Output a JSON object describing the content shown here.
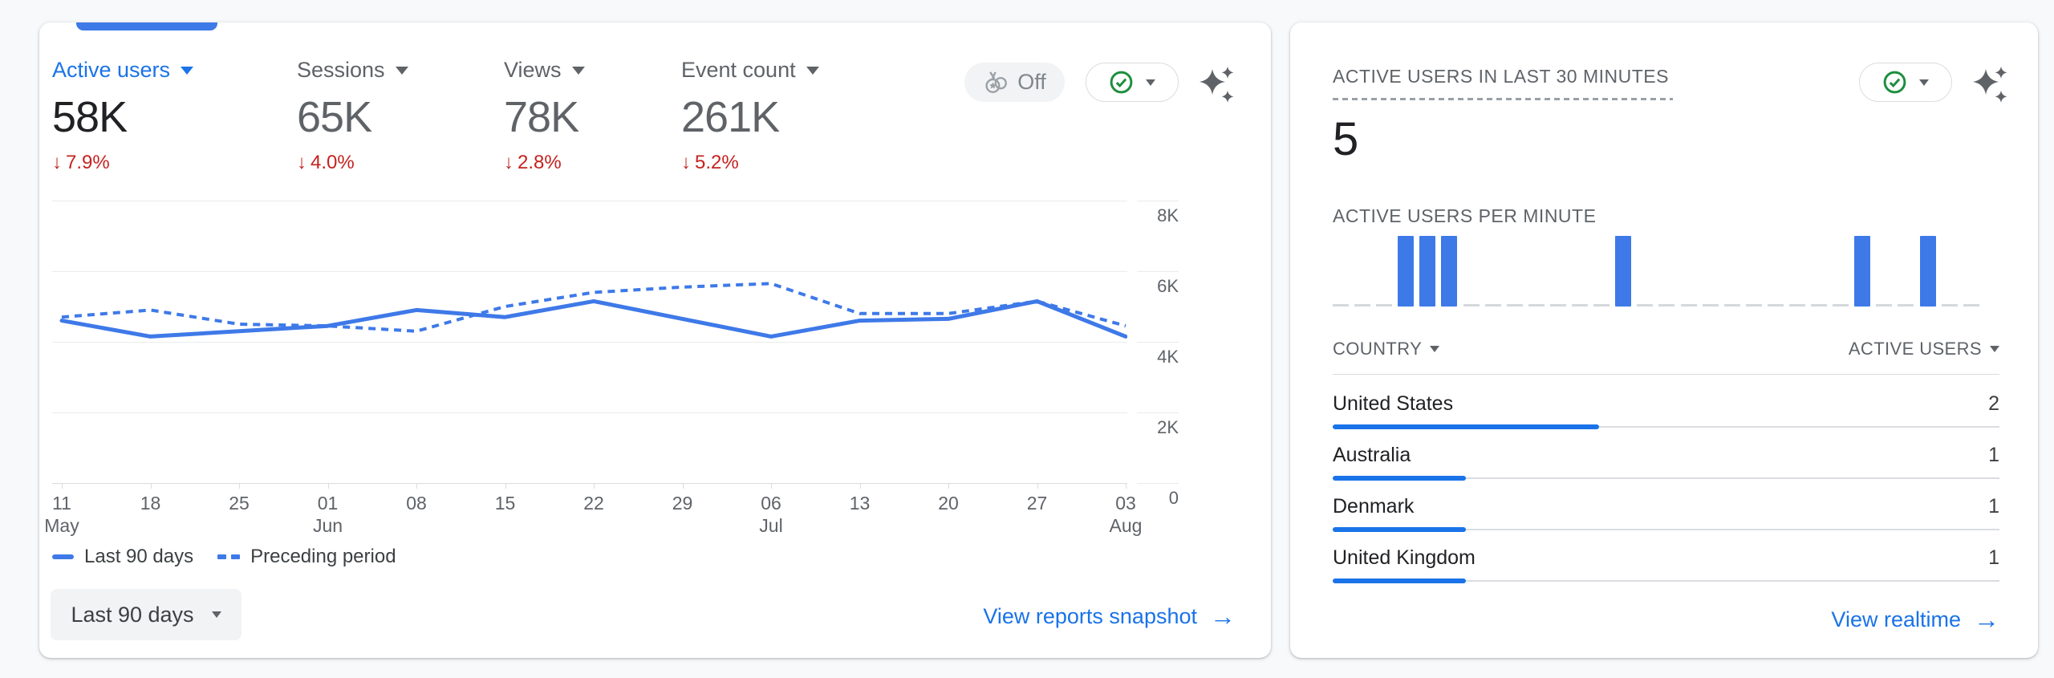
{
  "page": {
    "background": "#f8f9fa"
  },
  "colors": {
    "accent_blue": "#1a73e8",
    "chart_blue": "#3e79e8",
    "negative_red": "#c5221f",
    "status_green": "#1e8e3e"
  },
  "overview_card": {
    "metrics": [
      {
        "label": "Active users",
        "value": "58K",
        "arrow": "↓",
        "change": "7.9%"
      },
      {
        "label": "Sessions",
        "value": "65K",
        "arrow": "↓",
        "change": "4.0%"
      },
      {
        "label": "Views",
        "value": "78K",
        "arrow": "↓",
        "change": "2.8%"
      },
      {
        "label": "Event count",
        "value": "261K",
        "arrow": "↓",
        "change": "5.2%"
      }
    ],
    "anomaly_toggle_label": "Off",
    "chart_data": {
      "type": "line",
      "y_ticks": [
        "8K",
        "6K",
        "4K",
        "2K",
        "0"
      ],
      "y_max": 8000,
      "x_ticks": [
        {
          "day": "11",
          "month": "May"
        },
        {
          "day": "18"
        },
        {
          "day": "25"
        },
        {
          "day": "01",
          "month": "Jun"
        },
        {
          "day": "08"
        },
        {
          "day": "15"
        },
        {
          "day": "22"
        },
        {
          "day": "29"
        },
        {
          "day": "06",
          "month": "Jul"
        },
        {
          "day": "13"
        },
        {
          "day": "20"
        },
        {
          "day": "27"
        },
        {
          "day": "03",
          "month": "Aug"
        }
      ],
      "series": [
        {
          "name": "Last 90 days",
          "style": "solid",
          "values": [
            4600,
            4150,
            4300,
            4450,
            4900,
            4700,
            5150,
            4650,
            4150,
            4600,
            4650,
            5150,
            4150
          ]
        },
        {
          "name": "Preceding period",
          "style": "dashed",
          "values": [
            4700,
            4900,
            4500,
            4450,
            4300,
            5000,
            5400,
            5550,
            5650,
            4800,
            4800,
            5150,
            4450
          ]
        }
      ]
    },
    "legend": [
      {
        "label": "Last 90 days"
      },
      {
        "label": "Preceding period"
      }
    ],
    "date_range_button_label": "Last 90 days",
    "footer_link_label": "View reports snapshot",
    "footer_link_arrow": "→"
  },
  "realtime_card": {
    "title": "ACTIVE USERS IN LAST 30 MINUTES",
    "active_users_value": "5",
    "per_minute_label": "ACTIVE USERS PER MINUTE",
    "chart_data": {
      "type": "bar",
      "minutes": 30,
      "values": [
        0,
        0,
        0,
        1,
        1,
        1,
        0,
        0,
        0,
        0,
        0,
        0,
        0,
        1,
        0,
        0,
        0,
        0,
        0,
        0,
        0,
        0,
        0,
        0,
        1,
        0,
        0,
        1,
        0,
        0
      ]
    },
    "table": {
      "country_header": "COUNTRY",
      "users_header": "ACTIVE USERS",
      "rows": [
        {
          "country": "United States",
          "active_users": "2",
          "bar_pct": 40
        },
        {
          "country": "Australia",
          "active_users": "1",
          "bar_pct": 20
        },
        {
          "country": "Denmark",
          "active_users": "1",
          "bar_pct": 20
        },
        {
          "country": "United Kingdom",
          "active_users": "1",
          "bar_pct": 20
        }
      ]
    },
    "footer_link_label": "View realtime",
    "footer_link_arrow": "→"
  }
}
